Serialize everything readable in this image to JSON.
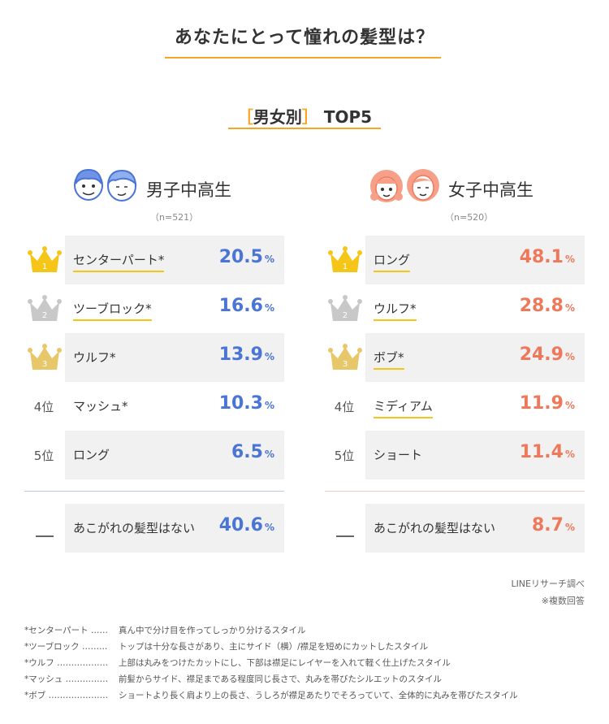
{
  "title": "あなたにとって憧れの髪型は？",
  "subtitle": {
    "open": "［",
    "text": "男女別",
    "close": "］",
    "suffix": "TOP5"
  },
  "chart_data": [
    {
      "type": "table",
      "title": "男子中高生",
      "sample": "（n=521）",
      "accent": "#4a74d6",
      "rows": [
        {
          "rank": "1",
          "name": "センターパート*",
          "value": 20.5,
          "value_label": "20.5",
          "unit": "%",
          "underline": true
        },
        {
          "rank": "2",
          "name": "ツーブロック*",
          "value": 16.6,
          "value_label": "16.6",
          "unit": "%",
          "underline": true
        },
        {
          "rank": "3",
          "name": "ウルフ*",
          "value": 13.9,
          "value_label": "13.9",
          "unit": "%",
          "underline": false
        },
        {
          "rank": "4位",
          "name": "マッシュ*",
          "value": 10.3,
          "value_label": "10.3",
          "unit": "%",
          "underline": false
        },
        {
          "rank": "5位",
          "name": "ロング",
          "value": 6.5,
          "value_label": "6.5",
          "unit": "%",
          "underline": false
        }
      ],
      "extra": {
        "name": "あこがれの髪型はない",
        "value": 40.6,
        "value_label": "40.6",
        "unit": "%"
      }
    },
    {
      "type": "table",
      "title": "女子中高生",
      "sample": "（n=520）",
      "accent": "#f0785a",
      "rows": [
        {
          "rank": "1",
          "name": "ロング",
          "value": 48.1,
          "value_label": "48.1",
          "unit": "%",
          "underline": true
        },
        {
          "rank": "2",
          "name": "ウルフ*",
          "value": 28.8,
          "value_label": "28.8",
          "unit": "%",
          "underline": true
        },
        {
          "rank": "3",
          "name": "ボブ*",
          "value": 24.9,
          "value_label": "24.9",
          "unit": "%",
          "underline": true
        },
        {
          "rank": "4位",
          "name": "ミディアム",
          "value": 11.9,
          "value_label": "11.9",
          "unit": "%",
          "underline": true
        },
        {
          "rank": "5位",
          "name": "ショート",
          "value": 11.4,
          "value_label": "11.4",
          "unit": "%",
          "underline": false
        }
      ],
      "extra": {
        "name": "あこがれの髪型はない",
        "value": 8.7,
        "value_label": "8.7",
        "unit": "%"
      }
    }
  ],
  "colors": {
    "gold": "#f5c518",
    "silver": "#c8c8c8",
    "bronze": "#e8c66a",
    "title_line": "#f5a623"
  },
  "source": "LINEリサーチ調べ",
  "source_note": "※複数回答",
  "notes": [
    {
      "term": "*センターパート ……",
      "desc": "真ん中で分け目を作ってしっかり分けるスタイル"
    },
    {
      "term": "*ツーブロック ………",
      "desc": "トップは十分な長さがあり、主にサイド（横）/襟足を短めにカットしたスタイル"
    },
    {
      "term": "*ウルフ ………………",
      "desc": "上部は丸みをつけたカットにし、下部は襟足にレイヤーを入れて軽く仕上げたスタイル"
    },
    {
      "term": "*マッシュ ……………",
      "desc": "前髪からサイド、襟足まである程度同じ長さで、丸みを帯びたシルエットのスタイル"
    },
    {
      "term": "*ボブ …………………",
      "desc": "ショートより長く肩より上の長さ、うしろが襟足あたりでそろっていて、全体的に丸みを帯びたスタイル"
    }
  ]
}
